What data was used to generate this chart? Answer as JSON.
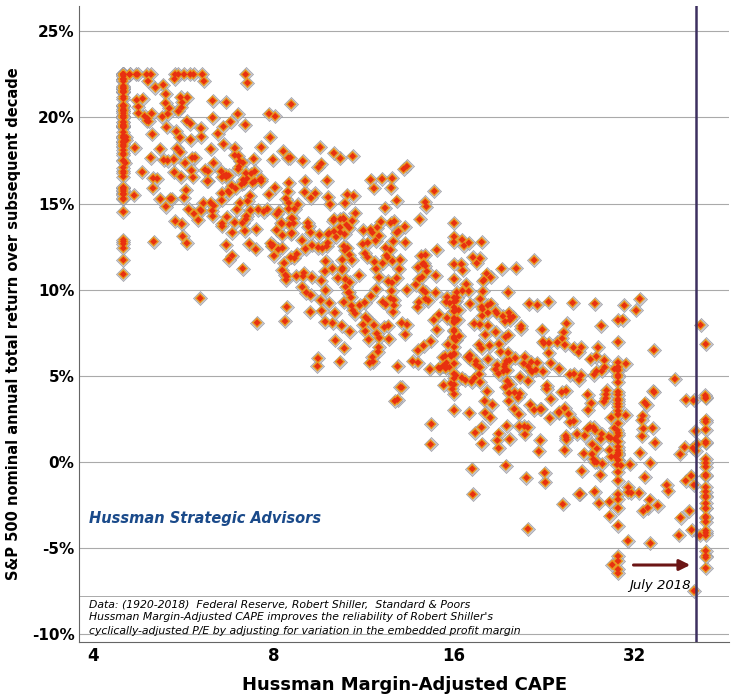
{
  "title": "",
  "xlabel": "Hussman Margin-Adjusted CAPE",
  "ylabel": "S&P 500 nominal annual total return over subsequent decade",
  "xlim_log": [
    3.8,
    46
  ],
  "xticks": [
    4,
    8,
    16,
    32
  ],
  "xtick_labels": [
    "4",
    "8",
    "16",
    "32"
  ],
  "ylim": [
    -0.105,
    0.265
  ],
  "yticks": [
    -0.1,
    -0.05,
    0.0,
    0.05,
    0.1,
    0.15,
    0.2,
    0.25
  ],
  "ytick_labels": [
    "-10%",
    "-5%",
    "0%",
    "5%",
    "10%",
    "15%",
    "20%",
    "25%"
  ],
  "vline_x": 40.5,
  "vline_color": "#3d3060",
  "annotation_text": "July 2018",
  "arrow_color": "#6b1515",
  "watermark": "Hussman Strategic Advisors",
  "watermark_color": "#1a4a8a",
  "footnote_line1": "Data: (1920-2018)  Federal Reserve, Robert Shiller,  Standard & Poors",
  "footnote_line2": "Hussman Margin-Adjusted CAPE improves the reliability of Robert Shiller's",
  "footnote_line3": "cyclically-adjusted P/E by adjusting for variation in the embedded profit margin",
  "background_color": "#ffffff",
  "grid_color": "#aaaaaa",
  "seed": 42,
  "n_points": 900
}
